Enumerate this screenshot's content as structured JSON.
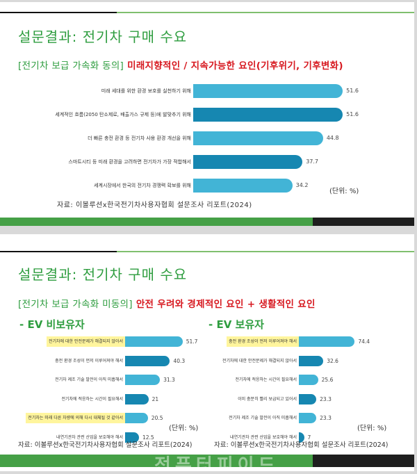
{
  "panel1": {
    "title": "설문결과: 전기차 구매 수요",
    "subtitle_green": "[전기차 보급 가속화 동의]",
    "subtitle_red": "미래지향적인 / 지속가능한 요인(기후위기, 기후변화)",
    "unit": "(단위: %)",
    "source": "자료: 이볼루션x한국전기차사용자협회 설문조사 리포트(2024)",
    "rows": [
      {
        "label": "미래 세대를 위한 환경 보호를 실천하기 위해",
        "value": "51.6",
        "shade": "light"
      },
      {
        "label": "세계적인 흐름(2050 탄소제로, 배출가스 규제 등)에 발맞추기 위해",
        "value": "51.6",
        "shade": "dark"
      },
      {
        "label": "더 빠른 충전 환경 등 전기차 사용 환경 개선을 위해",
        "value": "44.8",
        "shade": "light"
      },
      {
        "label": "스마트시티 등 미래 환경을 고려하면 전기차가 가장 적합해서",
        "value": "37.7",
        "shade": "dark"
      },
      {
        "label": "세계시장에서 한국의 전기차 경쟁력 확보를 위해",
        "value": "34.2",
        "shade": "light"
      }
    ]
  },
  "panel2": {
    "title": "설문결과: 전기차 구매 수요",
    "subtitle_green": "[전기차 보급 가속화 미동의]",
    "subtitle_red": "안전 우려와 경제적인 요인 + 생활적인 요인",
    "left": {
      "heading": "- EV 비보유자",
      "unit": "(단위: %)",
      "source": "자료: 이볼루션x한국전기차사용자협회 설문조사 리포트(2024)",
      "rows": [
        {
          "label": "전기차에 대한 안전문제가 해결되지 않아서",
          "value": "51.7",
          "shade": "light",
          "highlight": true
        },
        {
          "label": "충전 환경 조성이 먼저 이루어져야 해서",
          "value": "40.3",
          "shade": "dark",
          "highlight": false
        },
        {
          "label": "전기차 제조 기술 발전이 아직 미흡해서",
          "value": "31.3",
          "shade": "light",
          "highlight": false
        },
        {
          "label": "전기차에 적응하는 시간이 필요해서",
          "value": "21",
          "shade": "dark",
          "highlight": false
        },
        {
          "label": "전기차는 미래 다른 차량에 의해 다시 대체될 것 같아서",
          "value": "20.5",
          "shade": "light",
          "highlight": true
        },
        {
          "label": "내연기관차 관련 산업을 보호해야 해서",
          "value": "12.5",
          "shade": "dark",
          "highlight": false
        }
      ]
    },
    "right": {
      "heading": "- EV 보유자",
      "unit": "(단위: %)",
      "source": "자료: 이볼루션x한국전기차사용자협회 설문조사 리포트(2024)",
      "rows": [
        {
          "label": "충전 환경 조성이 먼저 이루어져야 해서",
          "value": "74.4",
          "shade": "light",
          "highlight": true
        },
        {
          "label": "전기차에 대한 안전문제가 해결되지 않아서",
          "value": "32.6",
          "shade": "dark",
          "highlight": false
        },
        {
          "label": "전기차에 적응하는 시간이 필요해서",
          "value": "25.6",
          "shade": "light",
          "highlight": false
        },
        {
          "label": "이미 충분히 빨리 보급되고 있어서",
          "value": "23.3",
          "shade": "dark",
          "highlight": false
        },
        {
          "label": "전기차 제조 기술 발전이 아직 미흡해서",
          "value": "23.3",
          "shade": "light",
          "highlight": false
        },
        {
          "label": "내연기관차 관련 산업을 보호해야 해서",
          "value": "7",
          "shade": "dark",
          "highlight": false
        }
      ]
    },
    "watermark": "전퓨터피이드"
  },
  "colors": {
    "title_green": "#2e9d3f",
    "subtitle_red": "#d71920",
    "bar_light": "#42b4d6",
    "bar_dark": "#1687b1",
    "footer_green": "#45a046",
    "footer_black": "#1e1e1e",
    "highlight": "#fff59d"
  },
  "chart_data": [
    {
      "type": "bar",
      "orientation": "horizontal",
      "title": "[전기차 보급 가속화 동의] 미래지향적인 / 지속가능한 요인(기후위기, 기후변화)",
      "categories": [
        "미래 세대를 위한 환경 보호를 실천하기 위해",
        "세계적인 흐름(2050 탄소제로, 배출가스 규제 등)에 발맞추기 위해",
        "더 빠른 충전 환경 등 전기차 사용 환경 개선을 위해",
        "스마트시티 등 미래 환경을 고려하면 전기차가 가장 적합해서",
        "세계시장에서 한국의 전기차 경쟁력 확보를 위해"
      ],
      "values": [
        51.6,
        51.6,
        44.8,
        37.7,
        34.2
      ],
      "unit": "%",
      "xlabel": "",
      "ylabel": "",
      "grid": false,
      "legend": null
    },
    {
      "type": "bar",
      "orientation": "horizontal",
      "title": "[전기차 보급 가속화 미동의] - EV 비보유자",
      "categories": [
        "전기차에 대한 안전문제가 해결되지 않아서",
        "충전 환경 조성이 먼저 이루어져야 해서",
        "전기차 제조 기술 발전이 아직 미흡해서",
        "전기차에 적응하는 시간이 필요해서",
        "전기차는 미래 다른 차량에 의해 다시 대체될 것 같아서",
        "내연기관차 관련 산업을 보호해야 해서"
      ],
      "values": [
        51.7,
        40.3,
        31.3,
        21,
        20.5,
        12.5
      ],
      "unit": "%",
      "grid": false,
      "legend": null
    },
    {
      "type": "bar",
      "orientation": "horizontal",
      "title": "[전기차 보급 가속화 미동의] - EV 보유자",
      "categories": [
        "충전 환경 조성이 먼저 이루어져야 해서",
        "전기차에 대한 안전문제가 해결되지 않아서",
        "전기차에 적응하는 시간이 필요해서",
        "이미 충분히 빨리 보급되고 있어서",
        "전기차 제조 기술 발전이 아직 미흡해서",
        "내연기관차 관련 산업을 보호해야 해서"
      ],
      "values": [
        74.4,
        32.6,
        25.6,
        23.3,
        23.3,
        7
      ],
      "unit": "%",
      "grid": false,
      "legend": null
    }
  ]
}
